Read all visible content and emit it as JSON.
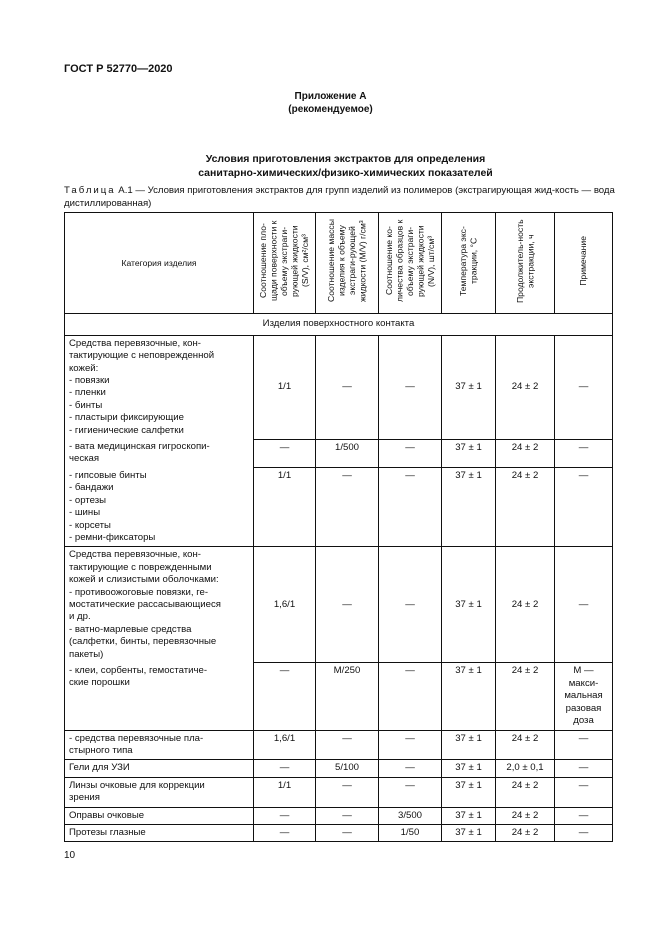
{
  "header": "ГОСТ Р 52770—2020",
  "annex": {
    "title": "Приложение А",
    "subtitle": "(рекомендуемое)"
  },
  "title_lines": [
    "Условия приготовления экстрактов для определения",
    "санитарно-химических/физико-химических показателей"
  ],
  "caption": {
    "label": "Таблица",
    "text": " А.1 — Условия приготовления экстрактов для групп изделий из полимеров (экстрагирующая жид-кость — вода дистиллированная)"
  },
  "columns": [
    "Категория изделия",
    "Соотношение пло-щади поверхности к объему экстраги-рующей жидкости (S/V), см²/см³",
    "Соотношение массы изделия к объему экстраги-рующей жидкости (M/V) г/см³",
    "Соотношение ко-личества образцов к объему экстраги-рующей жидкости (N/V), шт/см³",
    "Температура экс-тракции, °С",
    "Продолжитель-ность экстракции, ч",
    "Примечание"
  ],
  "section": "Изделия поверхностного контакта",
  "rows": [
    {
      "cat": [
        "Средства перевязочные, кон-",
        "тактирующие с неповрежденной",
        "кожей:",
        "- повязки",
        "- пленки",
        "- бинты",
        "- пластыри фиксирующие",
        "- гигиенические салфетки"
      ],
      "vals": [
        "1/1",
        "—",
        "—",
        "37 ± 1",
        "24 ± 2",
        "—"
      ],
      "pos": "first",
      "vm": true
    },
    {
      "cat": [
        "- вата медицинская гигроскопи-",
        "ческая"
      ],
      "vals": [
        "—",
        "1/500",
        "—",
        "37 ± 1",
        "24 ± 2",
        "—"
      ],
      "pos": "mid"
    },
    {
      "cat": [
        "- гипсовые бинты",
        "- бандажи",
        "- ортезы",
        "- шины",
        "- корсеты",
        "- ремни-фиксаторы"
      ],
      "vals": [
        "1/1",
        "—",
        "—",
        "37 ± 1",
        "24 ± 2",
        "—"
      ],
      "pos": "last"
    },
    {
      "cat": [
        "Средства перевязочные, кон-",
        "тактирующие с поврежденными",
        "кожей и слизистыми оболочками:",
        "- противоожоговые повязки, ге-",
        "мостатические рассасывающиеся",
        "и др.",
        "- ватно-марлевые средства",
        "(салфетки, бинты, перевязочные",
        "пакеты)"
      ],
      "vals": [
        "1,6/1",
        "—",
        "—",
        "37 ± 1",
        "24 ± 2",
        "—"
      ],
      "pos": "first",
      "vm": true
    },
    {
      "cat": [
        "- клеи, сорбенты, гемостатиче-",
        "ские порошки"
      ],
      "vals": [
        "—",
        "M/250",
        "—",
        "37 ± 1",
        "24 ± 2",
        "M — макси-мальная разовая доза"
      ],
      "pos": "last"
    },
    {
      "cat": [
        "- средства перевязочные пла-",
        "стырного типа"
      ],
      "vals": [
        "1,6/1",
        "—",
        "—",
        "37 ± 1",
        "24 ± 2",
        "—"
      ],
      "pos": "single"
    },
    {
      "cat": [
        "Гели для УЗИ"
      ],
      "vals": [
        "—",
        "5/100",
        "—",
        "37 ± 1",
        "2,0 ± 0,1",
        "—"
      ],
      "pos": "single"
    },
    {
      "cat": [
        "Линзы очковые для коррекции",
        "зрения"
      ],
      "vals": [
        "1/1",
        "—",
        "—",
        "37 ± 1",
        "24 ± 2",
        "—"
      ],
      "pos": "single"
    },
    {
      "cat": [
        "Оправы очковые"
      ],
      "vals": [
        "—",
        "—",
        "3/500",
        "37 ± 1",
        "24 ± 2",
        "—"
      ],
      "pos": "single"
    },
    {
      "cat": [
        "Протезы глазные"
      ],
      "vals": [
        "—",
        "—",
        "1/50",
        "37 ± 1",
        "24 ± 2",
        "—"
      ],
      "pos": "single"
    }
  ],
  "page_number": "10"
}
